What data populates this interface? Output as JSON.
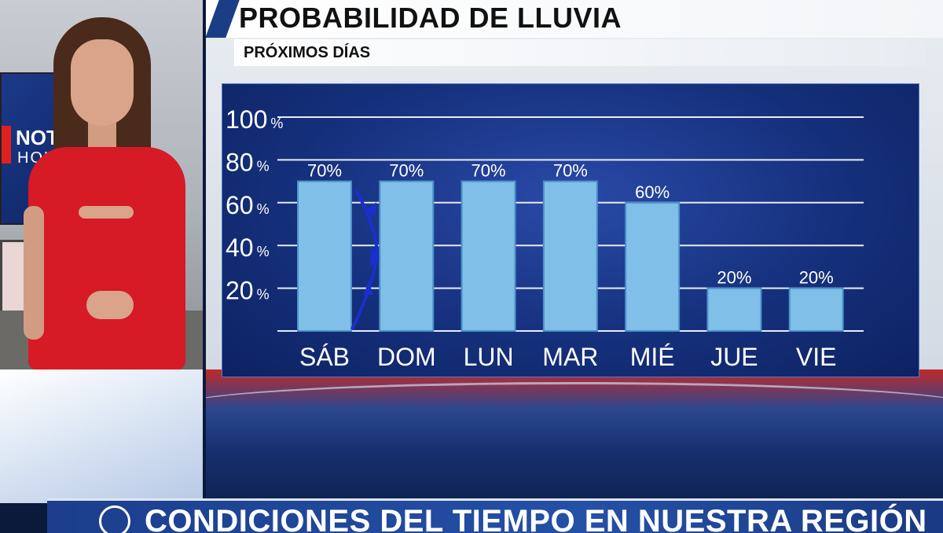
{
  "graphic": {
    "title": "PROBABILIDAD DE LLUVIA",
    "subtitle": "PRÓXIMOS DÍAS"
  },
  "screen_logo": {
    "text": "NOT",
    "sub": "HOU"
  },
  "lower_third": {
    "text": "CONDICIONES DEL TIEMPO EN NUESTRA REGIÓN"
  },
  "colors": {
    "bar": "#7fbfe8",
    "bar_border": "#4d8fc8",
    "grid": "#e6ecf7",
    "front": "#1a2fd0",
    "dress": "#d61a26"
  },
  "chart_data": {
    "type": "bar",
    "title": "PROBABILIDAD DE LLUVIA",
    "subtitle": "PRÓXIMOS DÍAS",
    "categories": [
      "SÁB",
      "DOM",
      "LUN",
      "MAR",
      "MIÉ",
      "JUE",
      "VIE"
    ],
    "values": [
      70,
      70,
      70,
      70,
      60,
      20,
      20
    ],
    "value_labels": [
      "70%",
      "70%",
      "70%",
      "70%",
      "60%",
      "20%",
      "20%"
    ],
    "yticks": [
      20,
      40,
      60,
      80,
      100
    ],
    "ytick_unit": "%",
    "ylim": [
      0,
      100
    ],
    "grid": true
  }
}
